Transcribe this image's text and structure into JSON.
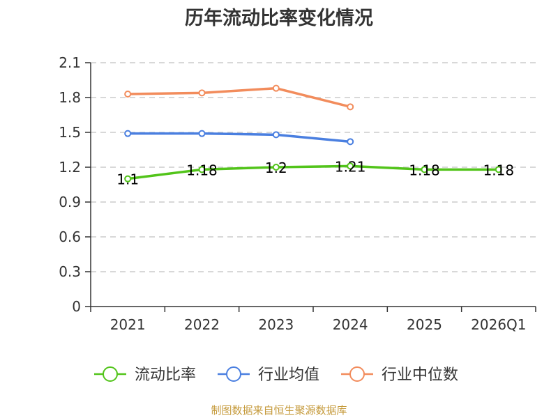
{
  "chart_data": {
    "type": "line",
    "title": "历年流动比率变化情况",
    "categories": [
      "2021",
      "2022",
      "2023",
      "2024",
      "2025",
      "2026Q1"
    ],
    "ylim": [
      0,
      2.1
    ],
    "yticks": [
      "0",
      "0.3",
      "0.6",
      "0.9",
      "1.2",
      "1.5",
      "1.8",
      "2.1"
    ],
    "grid": true,
    "legend_position": "bottom-center",
    "series": [
      {
        "name": "流动比率",
        "color": "#52c41a",
        "values": [
          1.1,
          1.18,
          1.2,
          1.21,
          1.18,
          1.18
        ],
        "data_labels": [
          "1.1",
          "1.18",
          "1.2",
          "1.21",
          "1.18",
          "1.18"
        ]
      },
      {
        "name": "行业均值",
        "color": "#4a7fe0",
        "values": [
          1.49,
          1.49,
          1.48,
          1.42,
          null,
          null
        ]
      },
      {
        "name": "行业中位数",
        "color": "#f28c5c",
        "values": [
          1.83,
          1.84,
          1.88,
          1.72,
          null,
          null
        ]
      }
    ]
  },
  "source_note": "制图数据来自恒生聚源数据库"
}
